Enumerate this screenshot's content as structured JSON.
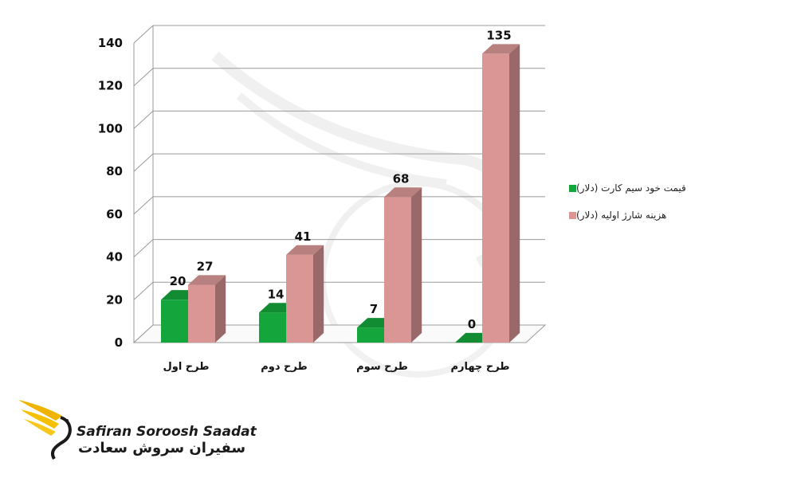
{
  "chart_data": {
    "type": "bar",
    "categories": [
      "طرح اول",
      "طرح دوم",
      "طرح سوم",
      "طرح چهارم"
    ],
    "series": [
      {
        "name": "قیمت خود سیم کارت (دلار)",
        "values": [
          20,
          14,
          7,
          0
        ],
        "color": "#14a53c"
      },
      {
        "name": "هزینه شارژ اولیه (دلار)",
        "values": [
          27,
          41,
          68,
          135
        ],
        "color": "#d99694"
      }
    ],
    "ylim": [
      0,
      140
    ],
    "yticks": [
      0,
      20,
      40,
      60,
      80,
      100,
      120,
      140
    ],
    "grid": true,
    "legend_position": "right",
    "style": "3d"
  },
  "logo": {
    "name_en": "Safiran Soroosh Saadat",
    "name_fa": "سفیران سروش سعادت"
  }
}
